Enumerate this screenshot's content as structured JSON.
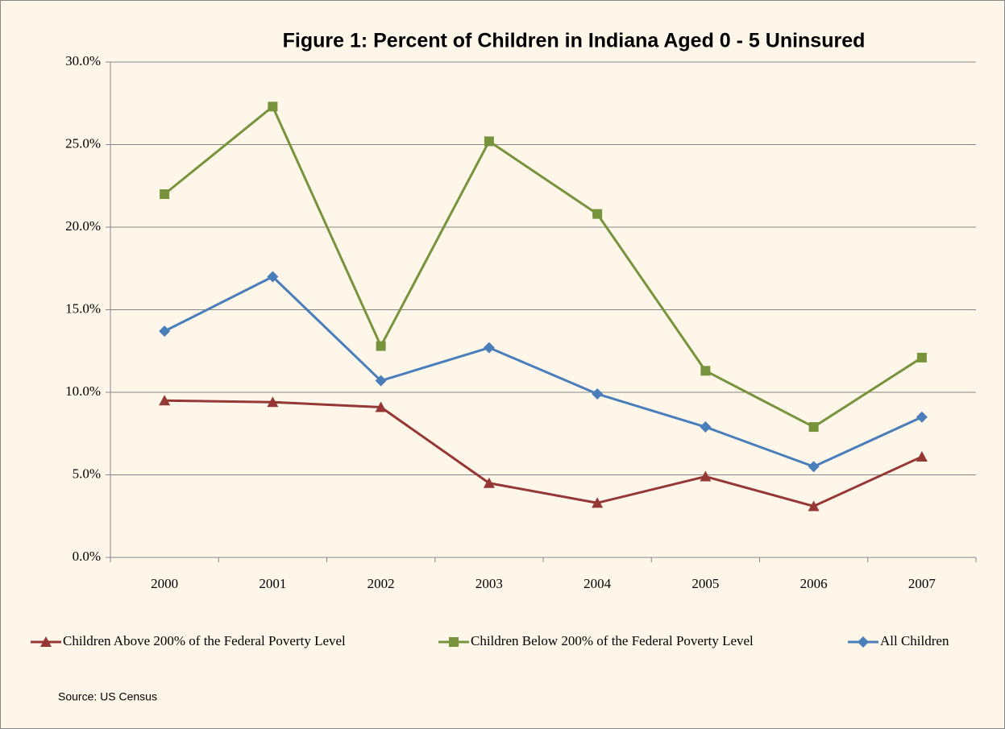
{
  "chart_data": {
    "type": "line",
    "title": "Figure 1: Percent of Children in Indiana Aged 0 - 5 Uninsured",
    "source": "Source: US Census",
    "categories": [
      "2000",
      "2001",
      "2002",
      "2003",
      "2004",
      "2005",
      "2006",
      "2007"
    ],
    "series": [
      {
        "name": "Children Above 200% of the Federal Poverty Level",
        "color": "#953735",
        "marker": "triangle",
        "values": [
          9.5,
          9.4,
          9.1,
          4.5,
          3.3,
          4.9,
          3.1,
          6.1
        ]
      },
      {
        "name": "Children Below 200% of the Federal Poverty Level",
        "color": "#77933c",
        "marker": "square",
        "values": [
          22.0,
          27.3,
          12.8,
          25.2,
          20.8,
          11.3,
          7.9,
          12.1
        ]
      },
      {
        "name": "All Children",
        "color": "#4a7ebb",
        "marker": "diamond",
        "values": [
          13.7,
          17.0,
          10.7,
          12.7,
          9.9,
          7.9,
          5.5,
          8.5
        ]
      }
    ],
    "ylim": [
      0,
      30
    ],
    "yticks": [
      {
        "value": 0,
        "label": "0.0%"
      },
      {
        "value": 5,
        "label": "5.0%"
      },
      {
        "value": 10,
        "label": "10.0%"
      },
      {
        "value": 15,
        "label": "15.0%"
      },
      {
        "value": 20,
        "label": "20.0%"
      },
      {
        "value": 25,
        "label": "25.0%"
      },
      {
        "value": 30,
        "label": "30.0%"
      }
    ],
    "grid": true,
    "legend": "bottom"
  }
}
